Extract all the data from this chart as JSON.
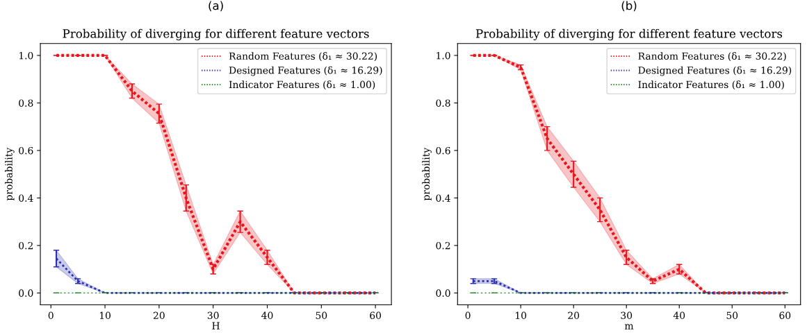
{
  "chart_data": [
    {
      "type": "line",
      "title": "Probability of diverging for different feature vectors",
      "xlabel": "H",
      "ylabel": "probability",
      "annotations": [
        "(a)"
      ],
      "x": [
        1,
        5,
        10,
        15,
        20,
        25,
        30,
        35,
        40,
        45,
        50,
        55,
        60
      ],
      "series": [
        {
          "name": "Random Features (δ₁ ≈ 30.22)",
          "color": "#e8151b",
          "values": [
            1.0,
            1.0,
            1.0,
            0.85,
            0.755,
            0.4,
            0.1,
            0.3,
            0.15,
            0.0,
            0.0,
            0.0,
            0.0
          ],
          "errors": [
            0,
            0,
            0,
            0.03,
            0.04,
            0.055,
            0.02,
            0.045,
            0.03,
            0,
            0,
            0,
            0
          ],
          "lower": [
            1.0,
            1.0,
            1.0,
            0.82,
            0.715,
            0.345,
            0.08,
            0.255,
            0.12,
            0.0,
            0.0,
            0.0,
            0.0
          ],
          "upper": [
            1.0,
            1.0,
            1.0,
            0.88,
            0.795,
            0.455,
            0.12,
            0.345,
            0.18,
            0.0,
            0.0,
            0.0,
            0.0
          ]
        },
        {
          "name": "Designed Features (δ₁ ≈ 16.29)",
          "color": "#2b2fb0",
          "values": [
            0.145,
            0.05,
            0.0,
            0.0,
            0.0,
            0.0,
            0.0,
            0.0,
            0.0,
            0.0,
            0.0,
            0.0,
            0.0
          ],
          "errors": [
            0.035,
            0.01,
            0,
            0,
            0,
            0,
            0,
            0,
            0,
            0,
            0,
            0,
            0
          ],
          "lower": [
            0.11,
            0.04,
            0.0,
            0.0,
            0.0,
            0.0,
            0.0,
            0.0,
            0.0,
            0.0,
            0.0,
            0.0,
            0.0
          ],
          "upper": [
            0.18,
            0.06,
            0.0,
            0.0,
            0.0,
            0.0,
            0.0,
            0.0,
            0.0,
            0.0,
            0.0,
            0.0,
            0.0
          ]
        },
        {
          "name": "Indicator Features (δ₁ ≈ 1.00)",
          "color": "#1f8a2a",
          "values": [
            0.0,
            0.0,
            0.0,
            0.0,
            0.0,
            0.0,
            0.0,
            0.0,
            0.0,
            0.0,
            0.0,
            0.0,
            0.0
          ],
          "errors": [
            0,
            0,
            0,
            0,
            0,
            0,
            0,
            0,
            0,
            0,
            0,
            0,
            0
          ]
        }
      ],
      "xlim": [
        -1.95,
        62.95
      ],
      "ylim": [
        -0.05,
        1.05
      ],
      "xticks": [
        0,
        10,
        20,
        30,
        40,
        50,
        60
      ],
      "yticks": [
        {
          "value": 0,
          "label": "0.0"
        },
        {
          "value": 0.2,
          "label": "0.2"
        },
        {
          "value": 0.4,
          "label": "0.4"
        },
        {
          "value": 0.6,
          "label": "0.6"
        },
        {
          "value": 0.8,
          "label": "0.8"
        },
        {
          "value": 1.0,
          "label": "1.0"
        }
      ],
      "grid": false,
      "legend": "top right",
      "marker": "none",
      "line_style": "dotted"
    },
    {
      "type": "line",
      "title": "Probability of diverging for different feature vectors",
      "xlabel": "m",
      "ylabel": "probability",
      "annotations": [
        "(b)"
      ],
      "x": [
        1,
        5,
        10,
        15,
        20,
        25,
        30,
        35,
        40,
        45,
        50,
        55,
        60
      ],
      "series": [
        {
          "name": "Random Features (δ₁ ≈ 30.22)",
          "color": "#e8151b",
          "values": [
            1.0,
            1.0,
            0.95,
            0.65,
            0.5,
            0.35,
            0.15,
            0.05,
            0.1,
            0.0,
            0.0,
            0.0,
            0.0
          ],
          "errors": [
            0,
            0,
            0.01,
            0.05,
            0.055,
            0.05,
            0.03,
            0.01,
            0.02,
            0,
            0,
            0,
            0
          ],
          "lower": [
            1.0,
            1.0,
            0.94,
            0.6,
            0.445,
            0.3,
            0.12,
            0.04,
            0.08,
            0.0,
            0.0,
            0.0,
            0.0
          ],
          "upper": [
            1.0,
            1.0,
            0.96,
            0.7,
            0.555,
            0.4,
            0.18,
            0.06,
            0.12,
            0.0,
            0.0,
            0.0,
            0.0
          ]
        },
        {
          "name": "Designed Features (δ₁ ≈ 16.29)",
          "color": "#2b2fb0",
          "values": [
            0.05,
            0.05,
            0.0,
            0.0,
            0.0,
            0.0,
            0.0,
            0.0,
            0.0,
            0.0,
            0.0,
            0.0,
            0.0
          ],
          "errors": [
            0.01,
            0.01,
            0,
            0,
            0,
            0,
            0,
            0,
            0,
            0,
            0,
            0,
            0
          ],
          "lower": [
            0.04,
            0.04,
            0.0,
            0.0,
            0.0,
            0.0,
            0.0,
            0.0,
            0.0,
            0.0,
            0.0,
            0.0,
            0.0
          ],
          "upper": [
            0.06,
            0.06,
            0.0,
            0.0,
            0.0,
            0.0,
            0.0,
            0.0,
            0.0,
            0.0,
            0.0,
            0.0,
            0.0
          ]
        },
        {
          "name": "Indicator Features (δ₁ ≈ 1.00)",
          "color": "#1f8a2a",
          "values": [
            0.0,
            0.0,
            0.0,
            0.0,
            0.0,
            0.0,
            0.0,
            0.0,
            0.0,
            0.0,
            0.0,
            0.0,
            0.0
          ],
          "errors": [
            0,
            0,
            0,
            0,
            0,
            0,
            0,
            0,
            0,
            0,
            0,
            0,
            0
          ]
        }
      ],
      "xlim": [
        -1.95,
        62.95
      ],
      "ylim": [
        -0.05,
        1.05
      ],
      "xticks": [
        0,
        10,
        20,
        30,
        40,
        50,
        60
      ],
      "yticks": [
        {
          "value": 0,
          "label": "0.0"
        },
        {
          "value": 0.2,
          "label": "0.2"
        },
        {
          "value": 0.4,
          "label": "0.4"
        },
        {
          "value": 0.6,
          "label": "0.6"
        },
        {
          "value": 0.8,
          "label": "0.8"
        },
        {
          "value": 1.0,
          "label": "1.0"
        }
      ],
      "grid": false,
      "legend": "top right",
      "marker": "none",
      "line_style": "dotted"
    }
  ]
}
